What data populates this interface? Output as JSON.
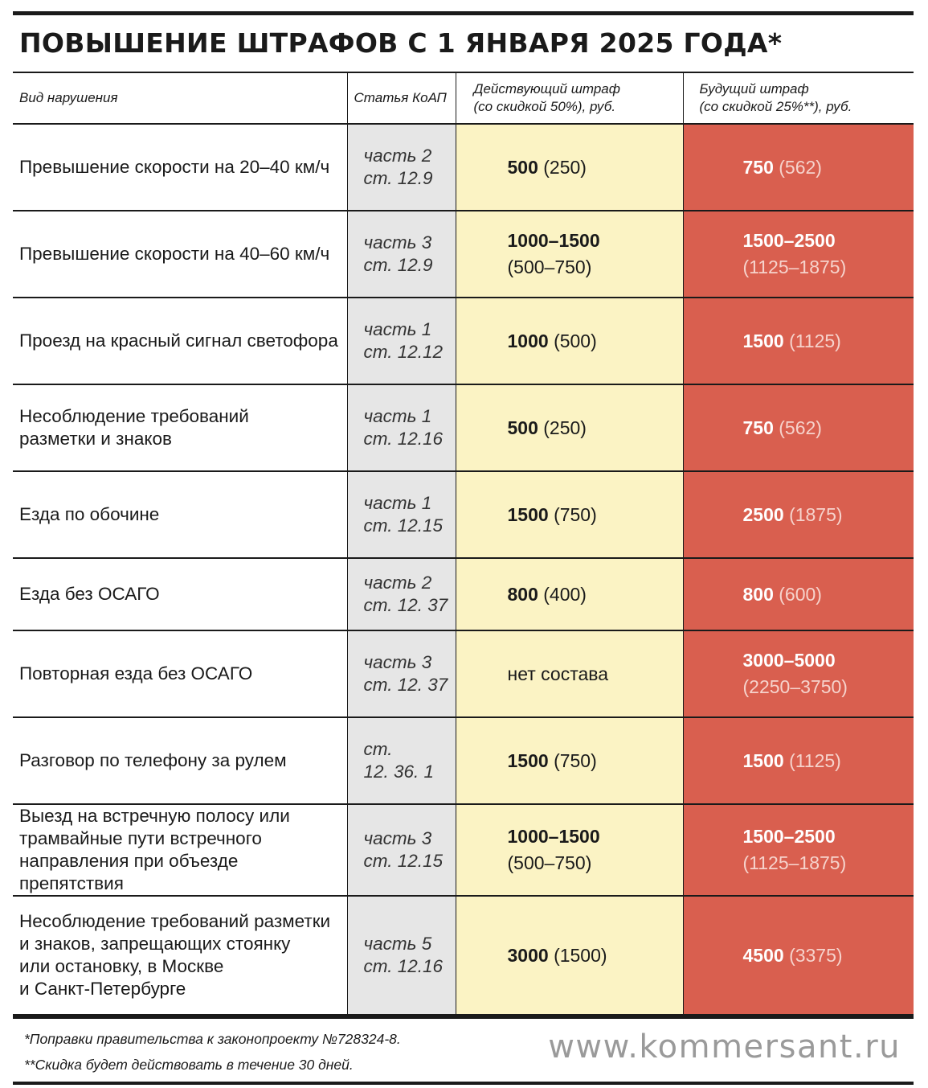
{
  "title": "ПОВЫШЕНИЕ ШТРАФОВ С 1 ЯНВАРЯ 2025 ГОДА*",
  "headers": {
    "violation": "Вид нарушения",
    "article": "Статья КоАП",
    "current_line1": "Действующий штраф",
    "current_line2": "(со скидкой 50%), руб.",
    "future_line1": "Будущий штраф",
    "future_line2": "(со скидкой 25%**), руб."
  },
  "rows": [
    {
      "violation": [
        "Превышение скорости на 20–40 км/ч"
      ],
      "article": [
        "часть 2",
        "ст. 12.9"
      ],
      "current": {
        "main": "500",
        "disc": "(250)",
        "wrap": false
      },
      "future": {
        "main": "750",
        "disc": "(562)",
        "wrap": false
      }
    },
    {
      "violation": [
        "Превышение скорости на 40–60 км/ч"
      ],
      "article": [
        "часть 3",
        "ст. 12.9"
      ],
      "current": {
        "main": "1000–1500",
        "disc": "(500–750)",
        "wrap": true
      },
      "future": {
        "main": "1500–2500",
        "disc": "(1125–1875)",
        "wrap": true
      }
    },
    {
      "violation": [
        "Проезд на красный сигнал светофора"
      ],
      "article": [
        "часть 1",
        "ст. 12.12"
      ],
      "current": {
        "main": "1000",
        "disc": "(500)",
        "wrap": false
      },
      "future": {
        "main": "1500",
        "disc": "(1125)",
        "wrap": false
      }
    },
    {
      "violation": [
        "Несоблюдение требований",
        "разметки и знаков"
      ],
      "article": [
        "часть 1",
        "ст. 12.16"
      ],
      "current": {
        "main": "500",
        "disc": "(250)",
        "wrap": false
      },
      "future": {
        "main": "750",
        "disc": "(562)",
        "wrap": false
      }
    },
    {
      "violation": [
        "Езда по обочине"
      ],
      "article": [
        "часть 1",
        "ст. 12.15"
      ],
      "current": {
        "main": "1500",
        "disc": "(750)",
        "wrap": false
      },
      "future": {
        "main": "2500",
        "disc": "(1875)",
        "wrap": false
      }
    },
    {
      "violation": [
        "Езда без ОСАГО"
      ],
      "article": [
        "часть 2",
        "ст. 12. 37"
      ],
      "current": {
        "main": "800",
        "disc": "(400)",
        "wrap": false
      },
      "future": {
        "main": "800",
        "disc": "(600)",
        "wrap": false
      }
    },
    {
      "violation": [
        "Повторная езда без ОСАГО"
      ],
      "article": [
        "часть 3",
        "ст. 12. 37"
      ],
      "current": {
        "main": "",
        "disc": "нет состава",
        "wrap": false
      },
      "future": {
        "main": "3000–5000",
        "disc": "(2250–3750)",
        "wrap": true
      }
    },
    {
      "violation": [
        "Разговор по телефону за рулем"
      ],
      "article": [
        "ст.",
        "12. 36. 1"
      ],
      "current": {
        "main": "1500",
        "disc": "(750)",
        "wrap": false
      },
      "future": {
        "main": "1500",
        "disc": "(1125)",
        "wrap": false
      }
    },
    {
      "violation": [
        "Выезд на встречную полосу или",
        "трамвайные пути встречного",
        "направления при объезде препятствия"
      ],
      "article": [
        "часть 3",
        "ст. 12.15"
      ],
      "current": {
        "main": "1000–1500",
        "disc": "(500–750)",
        "wrap": true
      },
      "future": {
        "main": "1500–2500",
        "disc": "(1125–1875)",
        "wrap": true
      }
    },
    {
      "violation": [
        "Несоблюдение требований разметки",
        "и знаков, запрещающих стоянку",
        "или остановку, в Москве",
        "и Санкт-Петербурге"
      ],
      "article": [
        "часть 5",
        "ст. 12.16"
      ],
      "current": {
        "main": "3000",
        "disc": "(1500)",
        "wrap": false
      },
      "future": {
        "main": "4500",
        "disc": "(3375)",
        "wrap": false
      }
    }
  ],
  "footnotes": {
    "note1": "*Поправки правительства к законопроекту №728324-8.",
    "note2": "**Скидка будет действовать в течение 30 дней."
  },
  "website": "www.kommersant.ru",
  "colors": {
    "current_column": "#fbf3c4",
    "future_column": "#d95f4f",
    "article_column": "#e6e6e6"
  }
}
